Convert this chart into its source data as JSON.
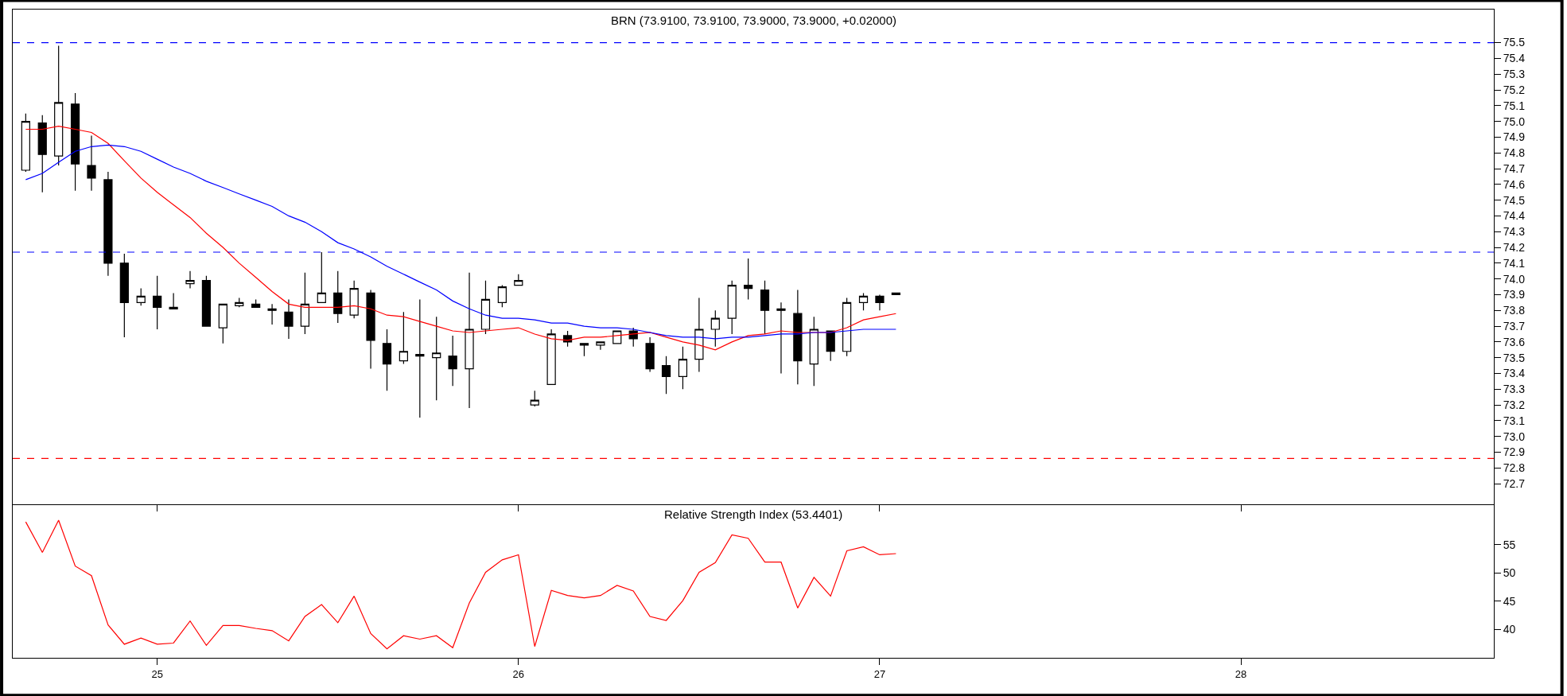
{
  "chart_data": [
    {
      "type": "candlestick",
      "title": "BRN (73.9100, 73.9100, 73.9000, 73.9000, +0.02000)",
      "tick_labels": "y",
      "grid": false,
      "x": [
        24.636,
        24.682,
        24.727,
        24.773,
        24.818,
        24.864,
        24.909,
        24.955,
        25,
        25.045,
        25.091,
        25.136,
        25.182,
        25.227,
        25.273,
        25.318,
        25.364,
        25.409,
        25.455,
        25.5,
        25.545,
        25.591,
        25.636,
        25.682,
        25.727,
        25.773,
        25.818,
        25.864,
        25.909,
        25.955,
        26,
        26.045,
        26.091,
        26.136,
        26.182,
        26.227,
        26.273,
        26.318,
        26.364,
        26.409,
        26.455,
        26.5,
        26.545,
        26.591,
        26.636,
        26.682,
        26.727,
        26.773,
        26.818,
        26.864,
        26.909,
        26.955,
        27,
        27.045
      ],
      "ohlc": [
        [
          74.69,
          75.05,
          74.68,
          75.0
        ],
        [
          74.99,
          75.04,
          74.55,
          74.79
        ],
        [
          74.78,
          75.48,
          74.72,
          75.12
        ],
        [
          75.11,
          75.18,
          74.56,
          74.73
        ],
        [
          74.72,
          74.91,
          74.56,
          74.64
        ],
        [
          74.63,
          74.68,
          74.02,
          74.1
        ],
        [
          74.1,
          74.16,
          73.63,
          73.85
        ],
        [
          73.85,
          73.94,
          73.83,
          73.89
        ],
        [
          73.89,
          74.02,
          73.68,
          73.82
        ],
        [
          73.82,
          73.91,
          73.81,
          73.81
        ],
        [
          73.97,
          74.05,
          73.94,
          73.99
        ],
        [
          73.99,
          74.02,
          73.7,
          73.7
        ],
        [
          73.69,
          73.84,
          73.59,
          73.84
        ],
        [
          73.83,
          73.88,
          73.82,
          73.85
        ],
        [
          73.84,
          73.87,
          73.82,
          73.82
        ],
        [
          73.81,
          73.84,
          73.71,
          73.8
        ],
        [
          73.79,
          73.87,
          73.62,
          73.7
        ],
        [
          73.7,
          74.04,
          73.65,
          73.84
        ],
        [
          73.85,
          74.17,
          73.85,
          73.91
        ],
        [
          73.91,
          74.05,
          73.72,
          73.78
        ],
        [
          73.77,
          73.99,
          73.75,
          73.94
        ],
        [
          73.91,
          73.93,
          73.43,
          73.61
        ],
        [
          73.59,
          73.68,
          73.29,
          73.46
        ],
        [
          73.48,
          73.79,
          73.46,
          73.54
        ],
        [
          73.52,
          73.87,
          73.12,
          73.51
        ],
        [
          73.5,
          73.76,
          73.23,
          73.53
        ],
        [
          73.51,
          73.64,
          73.32,
          73.43
        ],
        [
          73.43,
          74.04,
          73.18,
          73.68
        ],
        [
          73.68,
          73.99,
          73.65,
          73.87
        ],
        [
          73.85,
          73.96,
          73.82,
          73.95
        ],
        [
          73.96,
          74.03,
          73.96,
          73.99
        ],
        [
          73.2,
          73.29,
          73.19,
          73.23
        ],
        [
          73.33,
          73.68,
          73.33,
          73.65
        ],
        [
          73.64,
          73.67,
          73.57,
          73.6
        ],
        [
          73.59,
          73.59,
          73.51,
          73.58
        ],
        [
          73.58,
          73.6,
          73.55,
          73.6
        ],
        [
          73.59,
          73.67,
          73.59,
          73.67
        ],
        [
          73.67,
          73.69,
          73.57,
          73.62
        ],
        [
          73.59,
          73.63,
          73.41,
          73.43
        ],
        [
          73.45,
          73.51,
          73.27,
          73.38
        ],
        [
          73.38,
          73.57,
          73.3,
          73.49
        ],
        [
          73.49,
          73.88,
          73.41,
          73.68
        ],
        [
          73.68,
          73.8,
          73.57,
          73.75
        ],
        [
          73.75,
          73.99,
          73.65,
          73.96
        ],
        [
          73.96,
          74.13,
          73.87,
          73.94
        ],
        [
          73.93,
          73.99,
          73.65,
          73.8
        ],
        [
          73.81,
          73.85,
          73.4,
          73.8
        ],
        [
          73.78,
          73.93,
          73.33,
          73.48
        ],
        [
          73.46,
          73.76,
          73.32,
          73.68
        ],
        [
          73.67,
          73.67,
          73.48,
          73.54
        ],
        [
          73.54,
          73.88,
          73.51,
          73.85
        ],
        [
          73.85,
          73.91,
          73.8,
          73.89
        ],
        [
          73.89,
          73.9,
          73.8,
          73.85
        ],
        [
          73.91,
          73.91,
          73.9,
          73.9
        ]
      ],
      "series": [
        {
          "type": "line",
          "color": "#ff0000",
          "values": [
            74.95,
            74.95,
            74.97,
            74.95,
            74.93,
            74.86,
            74.75,
            74.64,
            74.55,
            74.47,
            74.39,
            74.29,
            74.2,
            74.1,
            74.01,
            73.92,
            73.84,
            73.82,
            73.82,
            73.82,
            73.83,
            73.81,
            73.77,
            73.76,
            73.73,
            73.7,
            73.67,
            73.66,
            73.67,
            73.68,
            73.69,
            73.65,
            73.62,
            73.61,
            73.63,
            73.63,
            73.64,
            73.65,
            73.66,
            73.63,
            73.6,
            73.58,
            73.55,
            73.6,
            73.64,
            73.65,
            73.67,
            73.66,
            73.66,
            73.66,
            73.69,
            73.74,
            73.76,
            73.78
          ]
        },
        {
          "type": "line",
          "color": "#0000ff",
          "values": [
            74.63,
            74.67,
            74.74,
            74.81,
            74.84,
            74.85,
            74.84,
            74.81,
            74.76,
            74.71,
            74.67,
            74.62,
            74.58,
            74.54,
            74.5,
            74.46,
            74.4,
            74.36,
            74.3,
            74.23,
            74.19,
            74.14,
            74.08,
            74.03,
            73.98,
            73.93,
            73.86,
            73.81,
            73.77,
            73.75,
            73.75,
            73.74,
            73.72,
            73.72,
            73.7,
            73.69,
            73.69,
            73.68,
            73.66,
            73.64,
            73.63,
            73.63,
            73.62,
            73.63,
            73.63,
            73.64,
            73.65,
            73.65,
            73.66,
            73.66,
            73.67,
            73.68,
            73.68,
            73.68
          ]
        }
      ],
      "ref_lines": [
        {
          "axis": "y",
          "value": 75.5,
          "color": "#0000ff",
          "line_style": "dashed"
        },
        {
          "axis": "y",
          "value": 74.17,
          "color": "#0000ff",
          "line_style": "dashed"
        },
        {
          "axis": "y",
          "value": 72.86,
          "color": "#ff0000",
          "line_style": "dashed"
        }
      ],
      "xlim": [
        24.6,
        28.7
      ],
      "xticks": [
        25,
        26,
        27,
        28
      ],
      "ylim": [
        72.57,
        75.71
      ],
      "yticks": [
        72.7,
        72.8,
        72.9,
        {
          "value": 73,
          "label": "73.0"
        },
        73.1,
        73.2,
        73.3,
        73.4,
        73.5,
        73.6,
        73.7,
        73.8,
        73.9,
        {
          "value": 74,
          "label": "74.0"
        },
        74.1,
        74.2,
        74.3,
        74.4,
        74.5,
        74.6,
        74.7,
        74.8,
        74.9,
        {
          "value": 75,
          "label": "75.0"
        },
        75.1,
        75.2,
        75.3,
        75.4,
        75.5
      ]
    },
    {
      "type": "line",
      "title": "Relative Strength Index (53.4401)",
      "grid": false,
      "marker": "none",
      "line_style": "solid",
      "x": [
        24.636,
        24.682,
        24.727,
        24.773,
        24.818,
        24.864,
        24.909,
        24.955,
        25,
        25.045,
        25.091,
        25.136,
        25.182,
        25.227,
        25.273,
        25.318,
        25.364,
        25.409,
        25.455,
        25.5,
        25.545,
        25.591,
        25.636,
        25.682,
        25.727,
        25.773,
        25.818,
        25.864,
        25.909,
        25.955,
        26,
        26.045,
        26.091,
        26.136,
        26.182,
        26.227,
        26.273,
        26.318,
        26.364,
        26.409,
        26.455,
        26.5,
        26.545,
        26.591,
        26.636,
        26.682,
        26.727,
        26.773,
        26.818,
        26.864,
        26.909,
        26.955,
        27,
        27.045
      ],
      "series": [
        {
          "color": "#ff0000",
          "values": [
            59.0,
            53.6,
            59.3,
            51.2,
            49.5,
            40.8,
            37.4,
            38.5,
            37.4,
            37.6,
            41.5,
            37.2,
            40.7,
            40.7,
            40.2,
            39.8,
            38.0,
            42.3,
            44.4,
            41.2,
            45.9,
            39.3,
            36.6,
            38.9,
            38.3,
            38.9,
            36.8,
            44.7,
            50.1,
            52.3,
            53.2,
            37.0,
            46.9,
            46.0,
            45.6,
            46.0,
            47.8,
            46.8,
            42.3,
            41.6,
            45.1,
            50.1,
            51.8,
            56.7,
            56.1,
            51.9,
            51.9,
            43.8,
            49.2,
            45.9,
            53.9,
            54.6,
            53.2,
            53.4
          ]
        }
      ],
      "xlim": [
        24.6,
        28.7
      ],
      "xticks": [
        25,
        26,
        27,
        28
      ],
      "ylim": [
        35,
        61.9
      ],
      "yticks": [
        40,
        45,
        50,
        55
      ]
    }
  ]
}
